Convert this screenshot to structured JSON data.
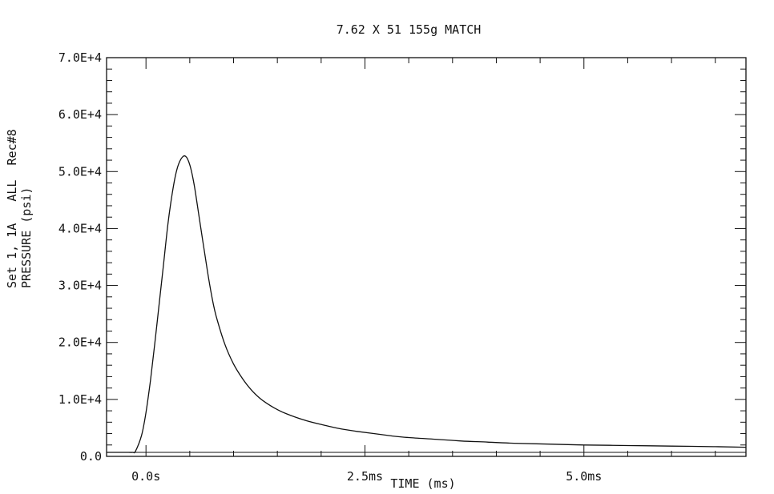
{
  "chart_data": {
    "type": "line",
    "title": "7.62 X 51 155g MATCH",
    "ylabel_lines": [
      "Set 1, 1A   ALL  Rec#8",
      "PRESSURE (psi)"
    ],
    "xlabel": "TIME (ms)",
    "y_tick_labels": [
      "0.0",
      "1.0E+4",
      "2.0E+4",
      "3.0E+4",
      "4.0E+4",
      "5.0E+4",
      "6.0E+4",
      "7.0E+4"
    ],
    "y_tick_values": [
      0,
      10000,
      20000,
      30000,
      40000,
      50000,
      60000,
      70000
    ],
    "x_tick_labels": [
      "0.0s",
      "2.5ms",
      "5.0ms"
    ],
    "x_tick_values": [
      0,
      2.5,
      5.0
    ],
    "xlim": [
      -0.45,
      6.85
    ],
    "ylim": [
      0,
      70000
    ],
    "grid": false,
    "series": [
      {
        "x": [
          -0.45,
          -0.3,
          -0.2,
          -0.15,
          -0.12,
          -0.05,
          0.0,
          0.05,
          0.1,
          0.15,
          0.2,
          0.25,
          0.3,
          0.35,
          0.4,
          0.45,
          0.5,
          0.55,
          0.6,
          0.65,
          0.7,
          0.75,
          0.8,
          0.9,
          1.0,
          1.1,
          1.2,
          1.3,
          1.4,
          1.5,
          1.6,
          1.8,
          2.0,
          2.2,
          2.4,
          2.6,
          2.8,
          3.0,
          3.3,
          3.6,
          3.9,
          4.2,
          4.6,
          5.0,
          5.5,
          6.0,
          6.5,
          6.85
        ],
        "y": [
          0,
          0,
          0,
          0,
          200,
          3000,
          7000,
          12500,
          19000,
          26000,
          33000,
          40000,
          45500,
          49500,
          51500,
          52000,
          50500,
          47000,
          42000,
          37000,
          32000,
          27500,
          24000,
          19000,
          15500,
          13000,
          11000,
          9500,
          8400,
          7500,
          6800,
          5700,
          4900,
          4200,
          3700,
          3300,
          2900,
          2600,
          2300,
          2000,
          1800,
          1600,
          1450,
          1300,
          1200,
          1100,
          1000,
          900
        ]
      }
    ]
  }
}
